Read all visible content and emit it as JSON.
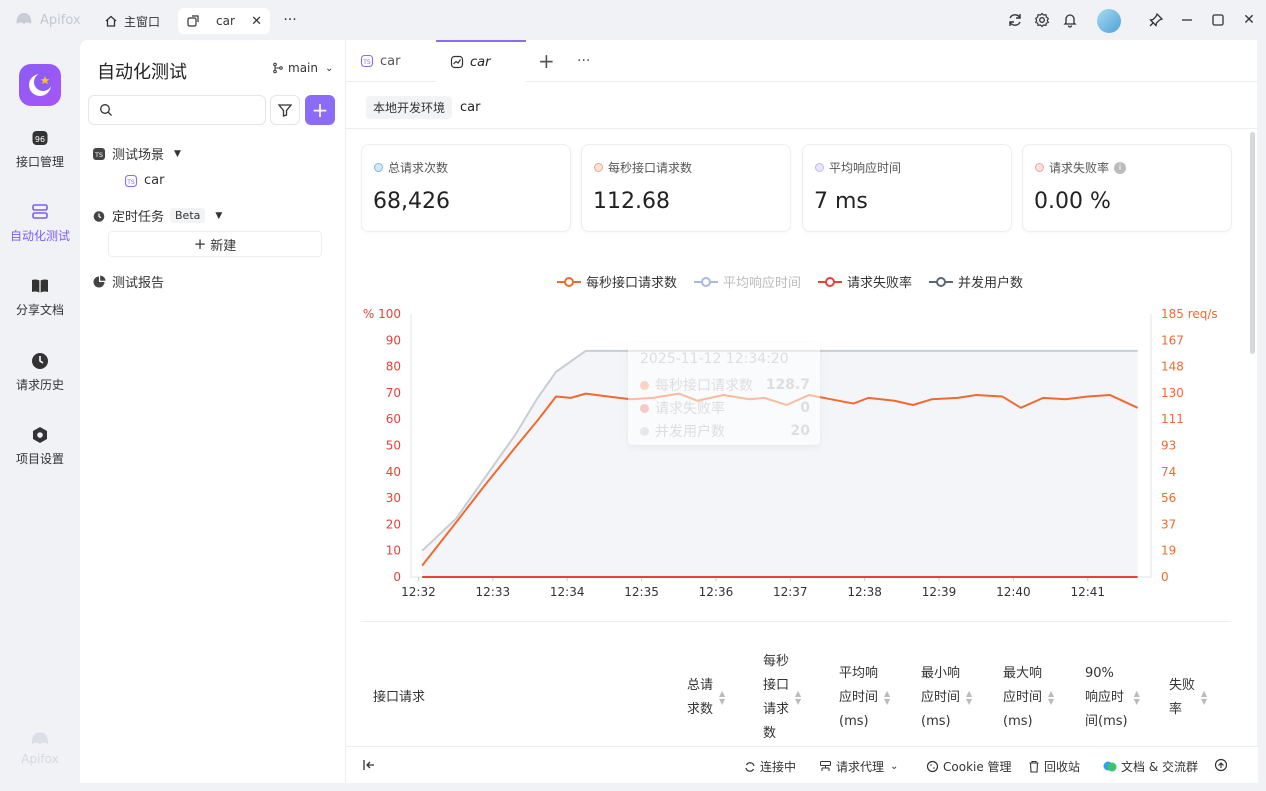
{
  "titlebar": {
    "brand": "Apifox",
    "home_tab": "主窗口",
    "active_tab": "car",
    "more": "···"
  },
  "rail": {
    "items": [
      {
        "label": "接口管理"
      },
      {
        "label": "自动化测试"
      },
      {
        "label": "分享文档"
      },
      {
        "label": "请求历史"
      },
      {
        "label": "项目设置"
      }
    ],
    "footer": "Apifox"
  },
  "sidebar": {
    "title": "自动化测试",
    "branch": "main",
    "scenarios": "测试场景",
    "scenario_item": "car",
    "scheduled": "定时任务",
    "beta": "Beta",
    "new": "新建",
    "reports": "测试报告"
  },
  "main": {
    "tabs": [
      {
        "label": "car"
      },
      {
        "label": "car"
      }
    ],
    "more": "···",
    "env": "本地开发环境",
    "scenario": "car"
  },
  "stats": [
    {
      "label": "总请求次数",
      "value": "68,426",
      "color": "#7db4e6"
    },
    {
      "label": "每秒接口请求数",
      "value": "112.68",
      "color": "#f0a487"
    },
    {
      "label": "平均响应时间",
      "value": "7 ms",
      "color": "#c3b4f2"
    },
    {
      "label": "请求失败率",
      "value": "0.00 %",
      "color": "#f3a3a3"
    }
  ],
  "legend": [
    {
      "label": "每秒接口请求数",
      "color": "#f06a2f"
    },
    {
      "label": "平均响应时间",
      "color": "#aab8e6"
    },
    {
      "label": "请求失败率",
      "color": "#e8413a"
    },
    {
      "label": "并发用户数",
      "color": "#5d6675"
    }
  ],
  "tooltip": {
    "time": "2025-11-12 12:34:20",
    "rows": [
      {
        "label": "每秒接口请求数",
        "value": "128.7"
      },
      {
        "label": "请求失败率",
        "value": "0"
      },
      {
        "label": "并发用户数",
        "value": "20"
      }
    ]
  },
  "chart_data": {
    "type": "line",
    "x_ticks": [
      "12:32",
      "12:33",
      "12:34",
      "12:35",
      "12:36",
      "12:37",
      "12:38",
      "12:39",
      "12:40",
      "12:41"
    ],
    "left_axis": {
      "unit_label": "% 100",
      "ticks": [
        "0",
        "10",
        "20",
        "30",
        "40",
        "50",
        "60",
        "70",
        "80",
        "90"
      ],
      "range": [
        0,
        100
      ]
    },
    "right_axis": {
      "unit_label": "185 req/s",
      "ticks": [
        "0",
        "19",
        "37",
        "56",
        "74",
        "93",
        "111",
        "130",
        "148",
        "167"
      ],
      "range": [
        0,
        185
      ]
    },
    "x": [
      12.05,
      12.5,
      12.9,
      13.3,
      13.6,
      13.85,
      14.05,
      14.25,
      14.55,
      14.85,
      15.15,
      15.5,
      15.75,
      16.1,
      16.45,
      16.65,
      16.95,
      17.25,
      17.55,
      17.85,
      18.05,
      18.4,
      18.65,
      18.9,
      19.25,
      19.5,
      19.85,
      20.1,
      20.4,
      20.7,
      21.0,
      21.3,
      21.67
    ],
    "series": [
      {
        "name": "每秒接口请求数",
        "axis": "right",
        "values": [
          8,
          38,
          65,
          91,
          110,
          127,
          126,
          129,
          127,
          125,
          126,
          129,
          124,
          128,
          125,
          126,
          121,
          128,
          125,
          122,
          126,
          124,
          121,
          125,
          126,
          128,
          127,
          119,
          126,
          125,
          127,
          128,
          119
        ]
      },
      {
        "name": "并发用户数",
        "axis": "left",
        "values": [
          10,
          22,
          38,
          54,
          68,
          78,
          82,
          86,
          86,
          86,
          86,
          86,
          86,
          86,
          86,
          86,
          86,
          86,
          86,
          86,
          86,
          86,
          86,
          86,
          86,
          86,
          86,
          86,
          86,
          86,
          86,
          86,
          86
        ]
      },
      {
        "name": "请求失败率",
        "axis": "left",
        "values": [
          0,
          0,
          0,
          0,
          0,
          0,
          0,
          0,
          0,
          0,
          0,
          0,
          0,
          0,
          0,
          0,
          0,
          0,
          0,
          0,
          0,
          0,
          0,
          0,
          0,
          0,
          0,
          0,
          0,
          0,
          0,
          0,
          0
        ]
      }
    ]
  },
  "table": {
    "headers": [
      {
        "label": "接口请求"
      },
      {
        "label": "总请\n求数"
      },
      {
        "label": "每秒\n接口\n请求\n数"
      },
      {
        "label": "平均响\n应时间\n(ms)"
      },
      {
        "label": "最小响\n应时间\n(ms)"
      },
      {
        "label": "最大响\n应时间\n(ms)"
      },
      {
        "label": "90%\n响应时\n间(ms)"
      },
      {
        "label": "失败\n率"
      }
    ]
  },
  "statusbar": {
    "connecting": "连接中",
    "proxy": "请求代理",
    "cookie": "Cookie 管理",
    "trash": "回收站",
    "docs": "文档 & 交流群"
  }
}
